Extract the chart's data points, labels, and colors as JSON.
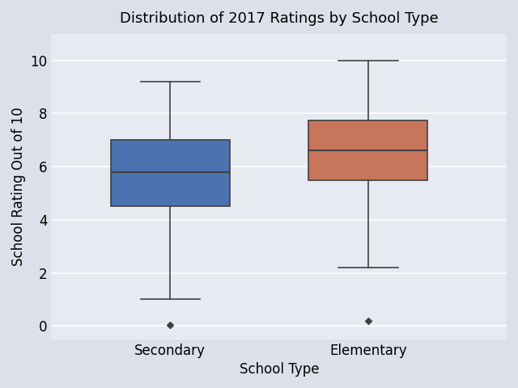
{
  "title": "Distribution of 2017 Ratings by School Type",
  "xlabel": "School Type",
  "ylabel": "School Rating Out of 10",
  "categories": [
    "Secondary",
    "Elementary"
  ],
  "boxes": [
    {
      "label": "Secondary",
      "q1": 4.5,
      "median": 5.8,
      "q3": 7.0,
      "whisker_low": 1.0,
      "whisker_high": 9.2,
      "outliers": [
        0.05
      ],
      "color": "#4c72b0"
    },
    {
      "label": "Elementary",
      "q1": 5.5,
      "median": 6.6,
      "q3": 7.75,
      "whisker_low": 2.2,
      "whisker_high": 10.0,
      "outliers": [
        0.2
      ],
      "color": "#c8765b"
    }
  ],
  "ylim": [
    -0.5,
    11.0
  ],
  "yticks": [
    0,
    2,
    4,
    6,
    8,
    10
  ],
  "axes_background": "#e8eaf2",
  "figure_background": "#dde0ea",
  "title_fontsize": 13,
  "label_fontsize": 12,
  "linewidth": 1.2
}
